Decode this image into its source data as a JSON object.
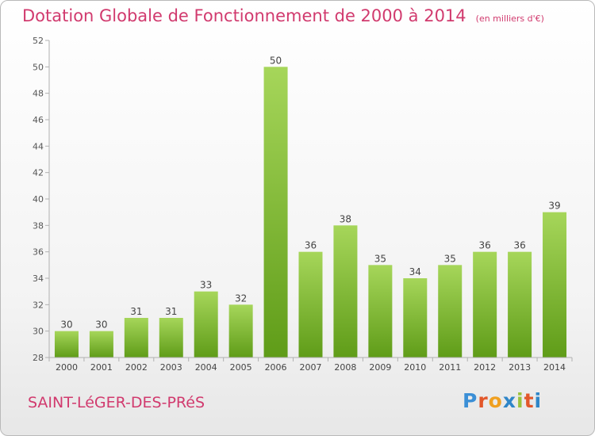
{
  "title": "Dotation Globale de Fonctionnement de 2000 à 2014",
  "title_unit": "(en milliers d'€)",
  "city": "SAINT-LéGER-DES-PRéS",
  "logo": {
    "letters": [
      "P",
      "r",
      "o",
      "x",
      "i",
      "t",
      "i"
    ],
    "colors": [
      "#3b8fd6",
      "#e2572a",
      "#f0a020",
      "#2f86c8",
      "#9bc23c",
      "#e2572a",
      "#2f86c8"
    ]
  },
  "colors": {
    "accent": "#d13a6e",
    "bar_top": "#a6d65a",
    "bar_bottom": "#5f9c18"
  },
  "chart_data": {
    "type": "bar",
    "categories": [
      "2000",
      "2001",
      "2002",
      "2003",
      "2004",
      "2005",
      "2006",
      "2007",
      "2008",
      "2009",
      "2010",
      "2011",
      "2012",
      "2013",
      "2014"
    ],
    "values": [
      30,
      30,
      31,
      31,
      33,
      32,
      50,
      36,
      38,
      35,
      34,
      35,
      36,
      36,
      39
    ],
    "ylim": [
      28,
      52
    ],
    "yticks": [
      28,
      30,
      32,
      34,
      36,
      38,
      40,
      42,
      44,
      46,
      48,
      50,
      52
    ],
    "grid": false,
    "data_labels": true
  }
}
